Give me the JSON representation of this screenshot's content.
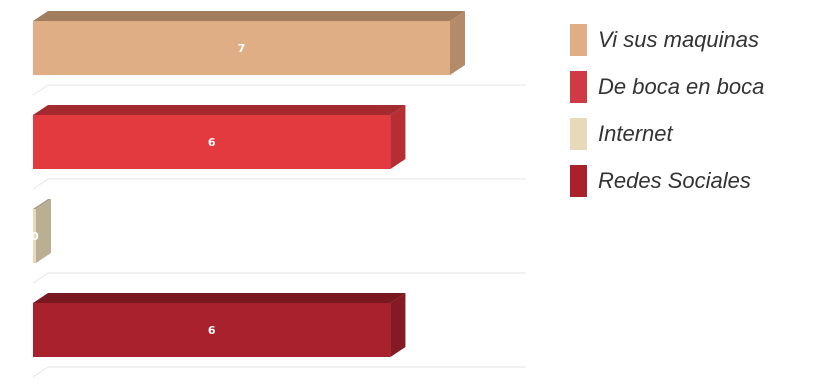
{
  "chart_data": {
    "type": "bar",
    "orientation": "horizontal",
    "three_d": true,
    "categories": [
      "Vi sus maquinas",
      "De boca en boca",
      "Internet",
      "Redes Sociales"
    ],
    "values": [
      7,
      6,
      0,
      6
    ],
    "data_labels": [
      "7",
      "6",
      "0",
      "6"
    ],
    "colors": [
      "#e0ae84",
      "#e33a40",
      "#e8d9b8",
      "#a8212d"
    ],
    "xlim": [
      0,
      8
    ],
    "grid": true,
    "legend_position": "right",
    "title": "",
    "xlabel": "",
    "ylabel": ""
  },
  "legend": {
    "items": [
      {
        "label": "Vi sus maquinas",
        "color": "#e0ae84"
      },
      {
        "label": "De boca en boca",
        "color": "#cf3a44"
      },
      {
        "label": "Internet",
        "color": "#e8d9b8"
      },
      {
        "label": "Redes Sociales",
        "color": "#a8212d"
      }
    ]
  }
}
